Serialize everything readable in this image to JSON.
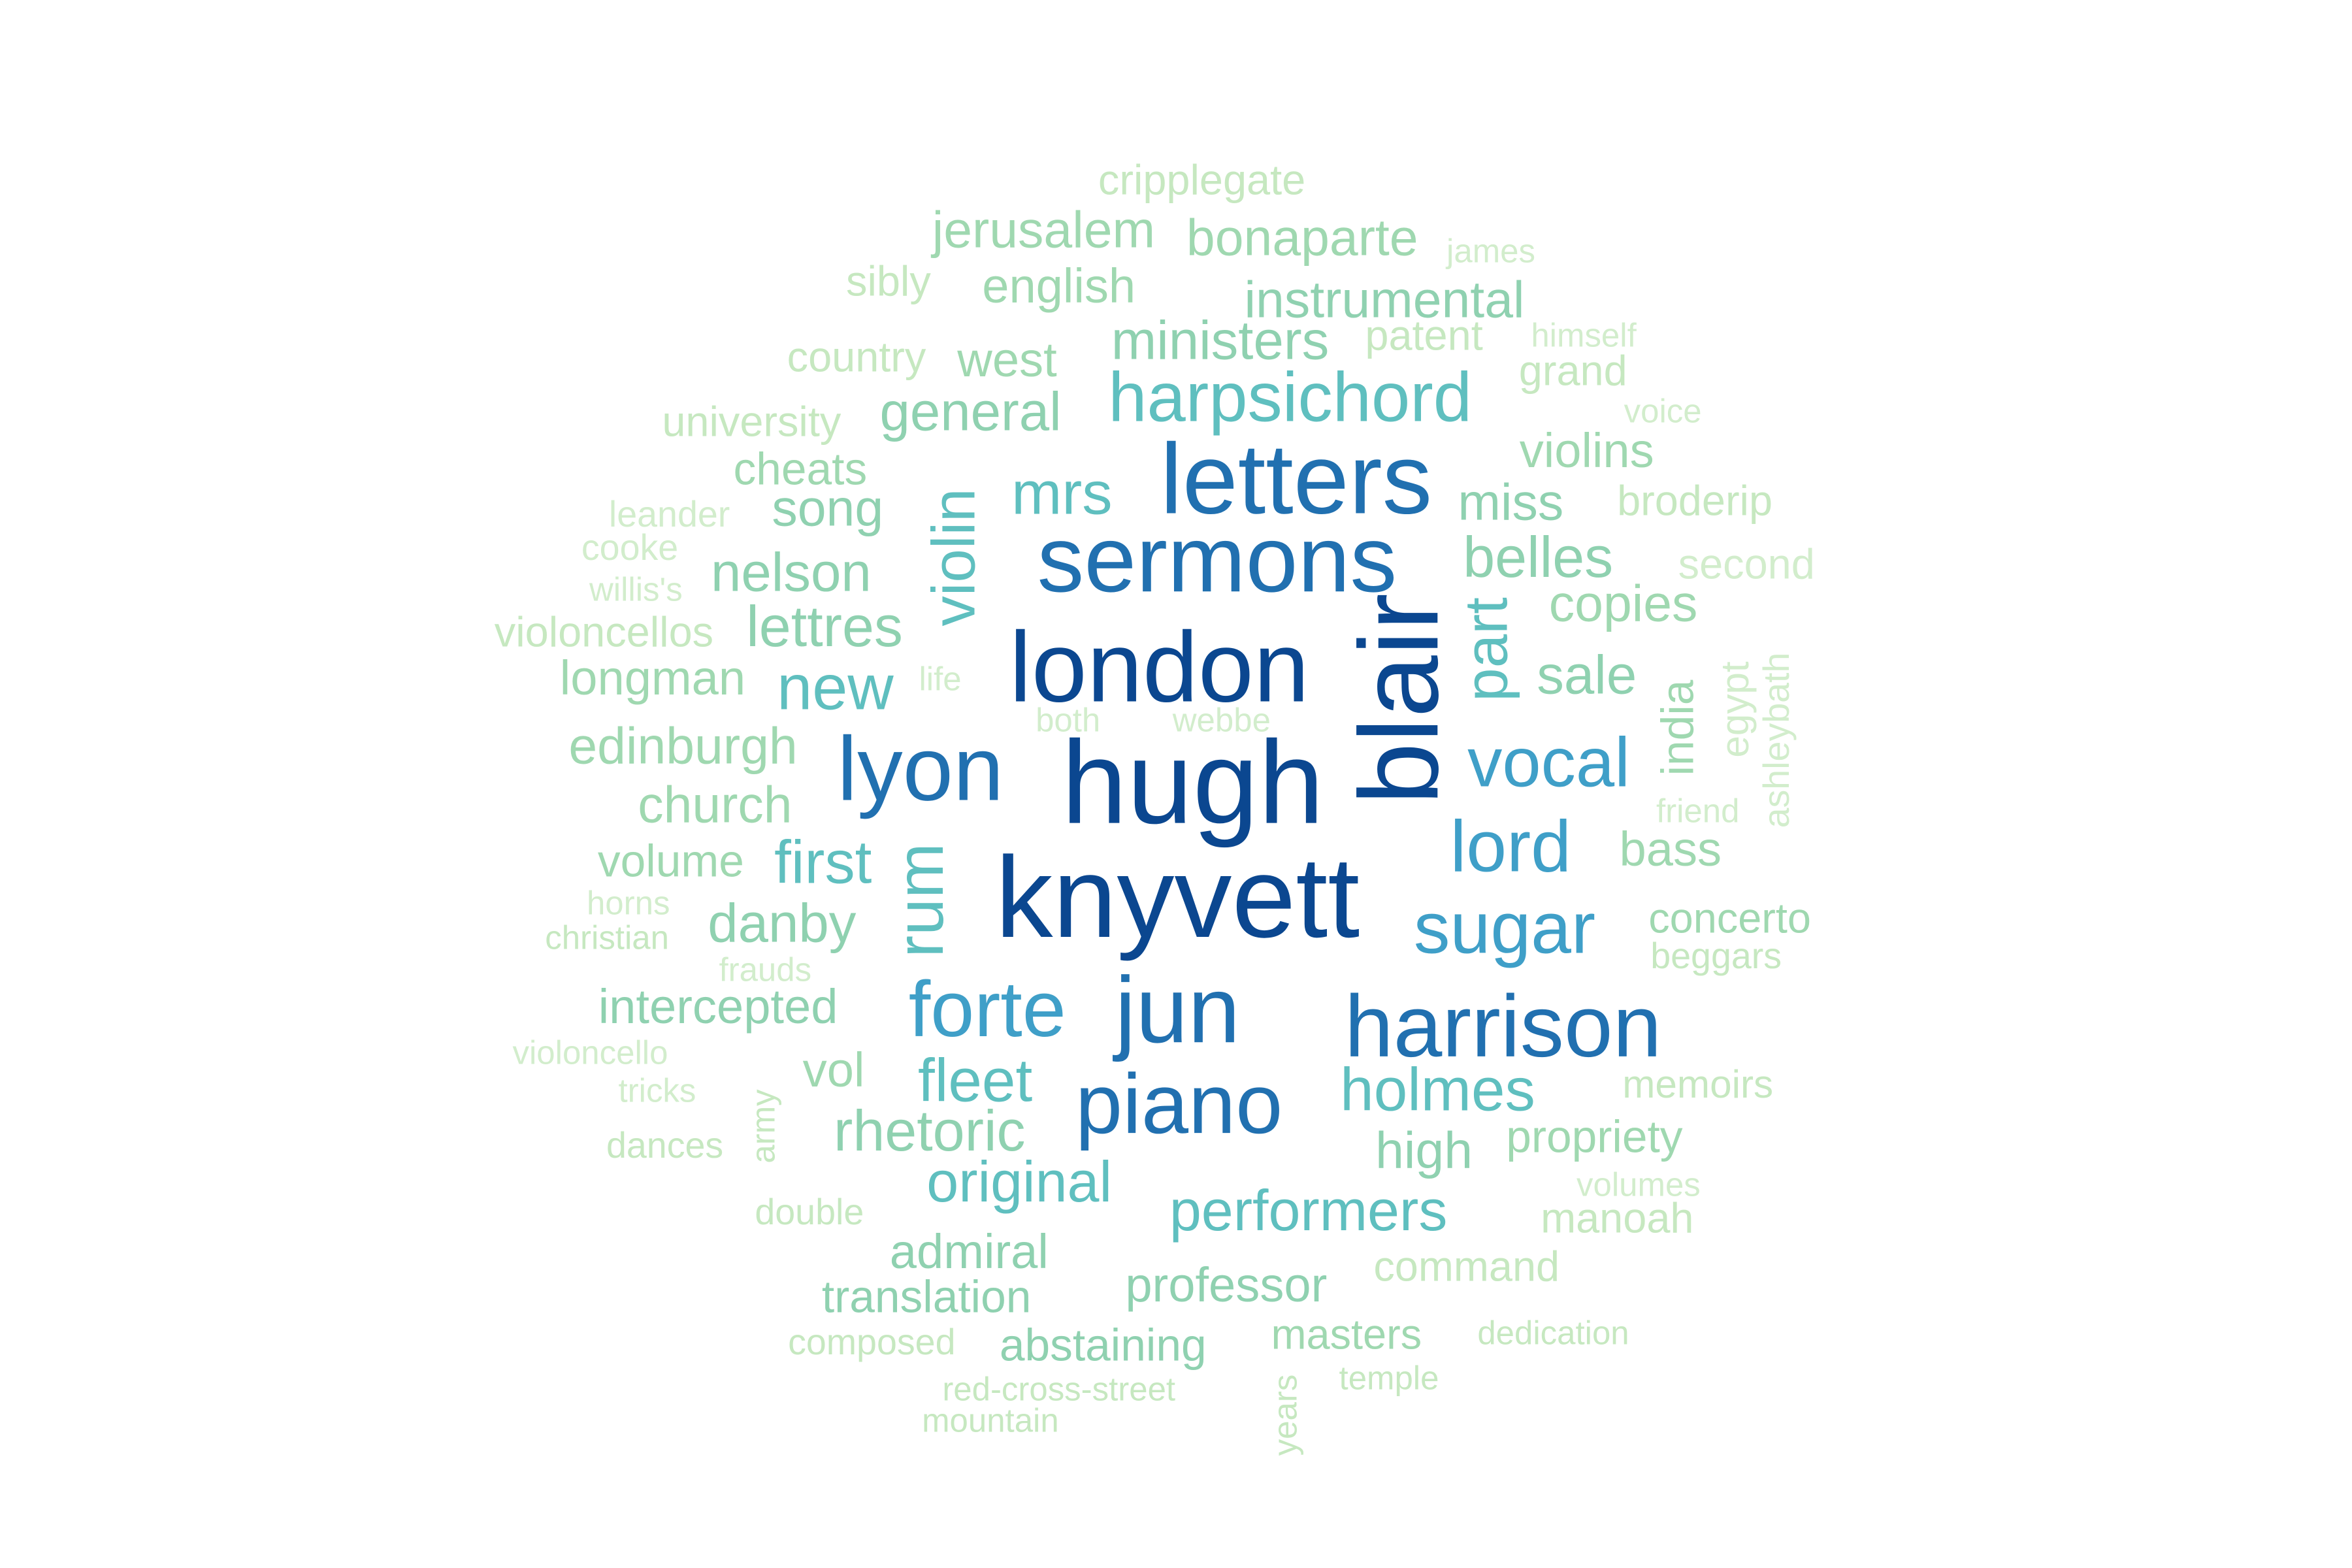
{
  "words": [
    {
      "text": "cripplegate",
      "color": "#c6e8c0"
    },
    {
      "text": "jerusalem",
      "color": "#9fd8b0"
    },
    {
      "text": "bonaparte",
      "color": "#9fd8b0"
    },
    {
      "text": "james",
      "color": "#d2edcc"
    },
    {
      "text": "sibly",
      "color": "#c6e8c0"
    },
    {
      "text": "english",
      "color": "#9fd8b0"
    },
    {
      "text": "instrumental",
      "color": "#8fd1b0"
    },
    {
      "text": "country",
      "color": "#c6e8c0"
    },
    {
      "text": "west",
      "color": "#9fd8b0"
    },
    {
      "text": "ministers",
      "color": "#8fd1b0"
    },
    {
      "text": "patent",
      "color": "#c6e8c0"
    },
    {
      "text": "himself",
      "color": "#d2edcc"
    },
    {
      "text": "grand",
      "color": "#c6e8c0"
    },
    {
      "text": "university",
      "color": "#c6e8c0"
    },
    {
      "text": "general",
      "color": "#8fd1b0"
    },
    {
      "text": "harpsichord",
      "color": "#5fbfbf"
    },
    {
      "text": "voice",
      "color": "#d2edcc"
    },
    {
      "text": "cheats",
      "color": "#9fd8b0"
    },
    {
      "text": "violins",
      "color": "#9fd8b0"
    },
    {
      "text": "letters",
      "color": "#2170b0"
    },
    {
      "text": "leander",
      "color": "#d2edcc"
    },
    {
      "text": "song",
      "color": "#8fd1b0"
    },
    {
      "text": "mrs",
      "color": "#5fbfbf"
    },
    {
      "text": "miss",
      "color": "#8fd1b0"
    },
    {
      "text": "broderip",
      "color": "#c6e8c0"
    },
    {
      "text": "cooke",
      "color": "#d2edcc"
    },
    {
      "text": "violin",
      "color": "#5fbfbf"
    },
    {
      "text": "sermons",
      "color": "#2170b0"
    },
    {
      "text": "belles",
      "color": "#8fd1b0"
    },
    {
      "text": "second",
      "color": "#d2edcc"
    },
    {
      "text": "nelson",
      "color": "#8fd1b0"
    },
    {
      "text": "willis's",
      "color": "#d2edcc"
    },
    {
      "text": "copies",
      "color": "#9fd8b0"
    },
    {
      "text": "violoncellos",
      "color": "#c6e8c0"
    },
    {
      "text": "lettres",
      "color": "#8fd1b0"
    },
    {
      "text": "part",
      "color": "#5fbfbf"
    },
    {
      "text": "london",
      "color": "#0b4790"
    },
    {
      "text": "blair",
      "color": "#0b4790"
    },
    {
      "text": "longman",
      "color": "#9fd8b0"
    },
    {
      "text": "life",
      "color": "#d2edcc"
    },
    {
      "text": "sale",
      "color": "#8fd1b0"
    },
    {
      "text": "ashleybath",
      "color": "#d2edcc"
    },
    {
      "text": "new",
      "color": "#5fbfbf"
    },
    {
      "text": "india",
      "color": "#9fd8b0"
    },
    {
      "text": "egypt",
      "color": "#d2edcc"
    },
    {
      "text": "both",
      "color": "#d2edcc"
    },
    {
      "text": "webbe",
      "color": "#d2edcc"
    },
    {
      "text": "edinburgh",
      "color": "#9fd8b0"
    },
    {
      "text": "lyon",
      "color": "#2170b0"
    },
    {
      "text": "hugh",
      "color": "#0b4790"
    },
    {
      "text": "vocal",
      "color": "#3f9fc8"
    },
    {
      "text": "church",
      "color": "#9fd8b0"
    },
    {
      "text": "friend",
      "color": "#d2edcc"
    },
    {
      "text": "lord",
      "color": "#3f9fc8"
    },
    {
      "text": "volume",
      "color": "#9fd8b0"
    },
    {
      "text": "first",
      "color": "#5fbfbf"
    },
    {
      "text": "bass",
      "color": "#9fd8b0"
    },
    {
      "text": "rum",
      "color": "#5fbfbf"
    },
    {
      "text": "knyvett",
      "color": "#0b4790"
    },
    {
      "text": "horns",
      "color": "#d2edcc"
    },
    {
      "text": "danby",
      "color": "#8fd1b0"
    },
    {
      "text": "christian",
      "color": "#c6e8c0"
    },
    {
      "text": "sugar",
      "color": "#3f9fc8"
    },
    {
      "text": "concerto",
      "color": "#9fd8b0"
    },
    {
      "text": "frauds",
      "color": "#d2edcc"
    },
    {
      "text": "beggars",
      "color": "#c6e8c0"
    },
    {
      "text": "intercepted",
      "color": "#8fd1b0"
    },
    {
      "text": "forte",
      "color": "#3f9fc8"
    },
    {
      "text": "jun",
      "color": "#2170b0"
    },
    {
      "text": "harrison",
      "color": "#2170b0"
    },
    {
      "text": "violoncello",
      "color": "#d2edcc"
    },
    {
      "text": "vol",
      "color": "#9fd8b0"
    },
    {
      "text": "fleet",
      "color": "#5fbfbf"
    },
    {
      "text": "tricks",
      "color": "#d2edcc"
    },
    {
      "text": "army",
      "color": "#c6e8c0"
    },
    {
      "text": "holmes",
      "color": "#5fbfbf"
    },
    {
      "text": "memoirs",
      "color": "#c6e8c0"
    },
    {
      "text": "piano",
      "color": "#2170b0"
    },
    {
      "text": "rhetoric",
      "color": "#8fd1b0"
    },
    {
      "text": "dances",
      "color": "#c6e8c0"
    },
    {
      "text": "propriety",
      "color": "#9fd8b0"
    },
    {
      "text": "high",
      "color": "#8fd1b0"
    },
    {
      "text": "original",
      "color": "#5fbfbf"
    },
    {
      "text": "volumes",
      "color": "#d2edcc"
    },
    {
      "text": "double",
      "color": "#c6e8c0"
    },
    {
      "text": "performers",
      "color": "#5fbfbf"
    },
    {
      "text": "manoah",
      "color": "#c6e8c0"
    },
    {
      "text": "admiral",
      "color": "#8fd1b0"
    },
    {
      "text": "command",
      "color": "#c6e8c0"
    },
    {
      "text": "professor",
      "color": "#8fd1b0"
    },
    {
      "text": "translation",
      "color": "#8fd1b0"
    },
    {
      "text": "masters",
      "color": "#9fd8b0"
    },
    {
      "text": "composed",
      "color": "#c6e8c0"
    },
    {
      "text": "abstaining",
      "color": "#8fd1b0"
    },
    {
      "text": "dedication",
      "color": "#c6e8c0"
    },
    {
      "text": "temple",
      "color": "#c6e8c0"
    },
    {
      "text": "red-cross-street",
      "color": "#c6e8c0"
    },
    {
      "text": "years",
      "color": "#c6e8c0"
    },
    {
      "text": "mountain",
      "color": "#c6e8c0"
    }
  ]
}
